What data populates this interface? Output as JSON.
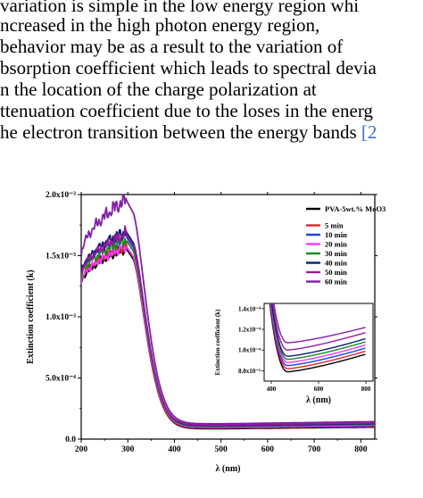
{
  "paragraph": {
    "lines": [
      {
        "text": "variation is simple in the low energy region whi",
        "cite": ""
      },
      {
        "text": "ncreased in the high photon energy region,",
        "cite": ""
      },
      {
        "text": "behavior may be as a result to the variation of",
        "cite": ""
      },
      {
        "text": "bsorption coefficient which leads to spectral devia",
        "cite": ""
      },
      {
        "text": "n the location of the charge polarization at",
        "cite": ""
      },
      {
        "text": "ttenuation coefficient due to the loses in the energ",
        "cite": ""
      },
      {
        "text": "he electron transition between the energy bands ",
        "cite": "[2"
      }
    ]
  },
  "chart_data": {
    "type": "line",
    "title": "",
    "xlabel": "λ (nm)",
    "ylabel": "Extinction coefficient (k)",
    "xlim": [
      200,
      830
    ],
    "ylim": [
      0,
      0.002
    ],
    "xticks": [
      200,
      300,
      400,
      500,
      600,
      700,
      800
    ],
    "yticks": [
      {
        "value": 0,
        "label": "0.0"
      },
      {
        "value": 0.0005,
        "label": "5.0x10⁻⁴"
      },
      {
        "value": 0.001,
        "label": "1.0x10⁻³"
      },
      {
        "value": 0.0015,
        "label": "1.5x10⁻³"
      },
      {
        "value": 0.002,
        "label": "2.0x10⁻³"
      }
    ],
    "legend_position": "top-right",
    "series": [
      {
        "name": "PVA-5wt.% MoO3",
        "color": "#000000",
        "start": 0.00127,
        "peak": 0.00156,
        "tail": 8.5e-05
      },
      {
        "name": "5 min",
        "color": "#e8202a",
        "start": 0.0013,
        "peak": 0.00158,
        "tail": 9e-05
      },
      {
        "name": "10 min",
        "color": "#1f3fe0",
        "start": 0.00135,
        "peak": 0.00166,
        "tail": 9.5e-05
      },
      {
        "name": "20 min",
        "color": "#ff33ff",
        "start": 0.00128,
        "peak": 0.00158,
        "tail": 0.0001
      },
      {
        "name": "30 min",
        "color": "#1a8a1a",
        "start": 0.00132,
        "peak": 0.00163,
        "tail": 0.000105
      },
      {
        "name": "40 min",
        "color": "#0a1f6e",
        "start": 0.00136,
        "peak": 0.0017,
        "tail": 0.00011
      },
      {
        "name": "50 min",
        "color": "#9b1a9b",
        "start": 0.00135,
        "peak": 0.00168,
        "tail": 0.000115
      },
      {
        "name": "60 min",
        "color": "#8020a8",
        "start": 0.0015,
        "peak": 0.00196,
        "tail": 0.000125
      }
    ],
    "inset": {
      "xlabel": "λ (nm)",
      "ylabel": "Extinction coefficient (k)",
      "xlim": [
        370,
        830
      ],
      "ylim": [
        7e-05,
        0.000145
      ],
      "xticks": [
        400,
        600,
        800
      ],
      "yticks": [
        {
          "value": 8e-05,
          "label": "8.0x10⁻⁵"
        },
        {
          "value": 0.0001,
          "label": "1.0x10⁻⁴"
        },
        {
          "value": 0.00012,
          "label": "1.2x10⁻⁴"
        },
        {
          "value": 0.00014,
          "label": "1.4x10⁻⁴"
        }
      ],
      "series_min": [
        7.9e-05,
        8.2e-05,
        8.5e-05,
        8.8e-05,
        9.1e-05,
        9.4e-05,
        0.0001,
        0.000107
      ],
      "series_end": [
        9.6e-05,
        9.9e-05,
        0.000102,
        0.000105,
        0.000108,
        0.000111,
        0.000117,
        0.000122
      ]
    }
  }
}
